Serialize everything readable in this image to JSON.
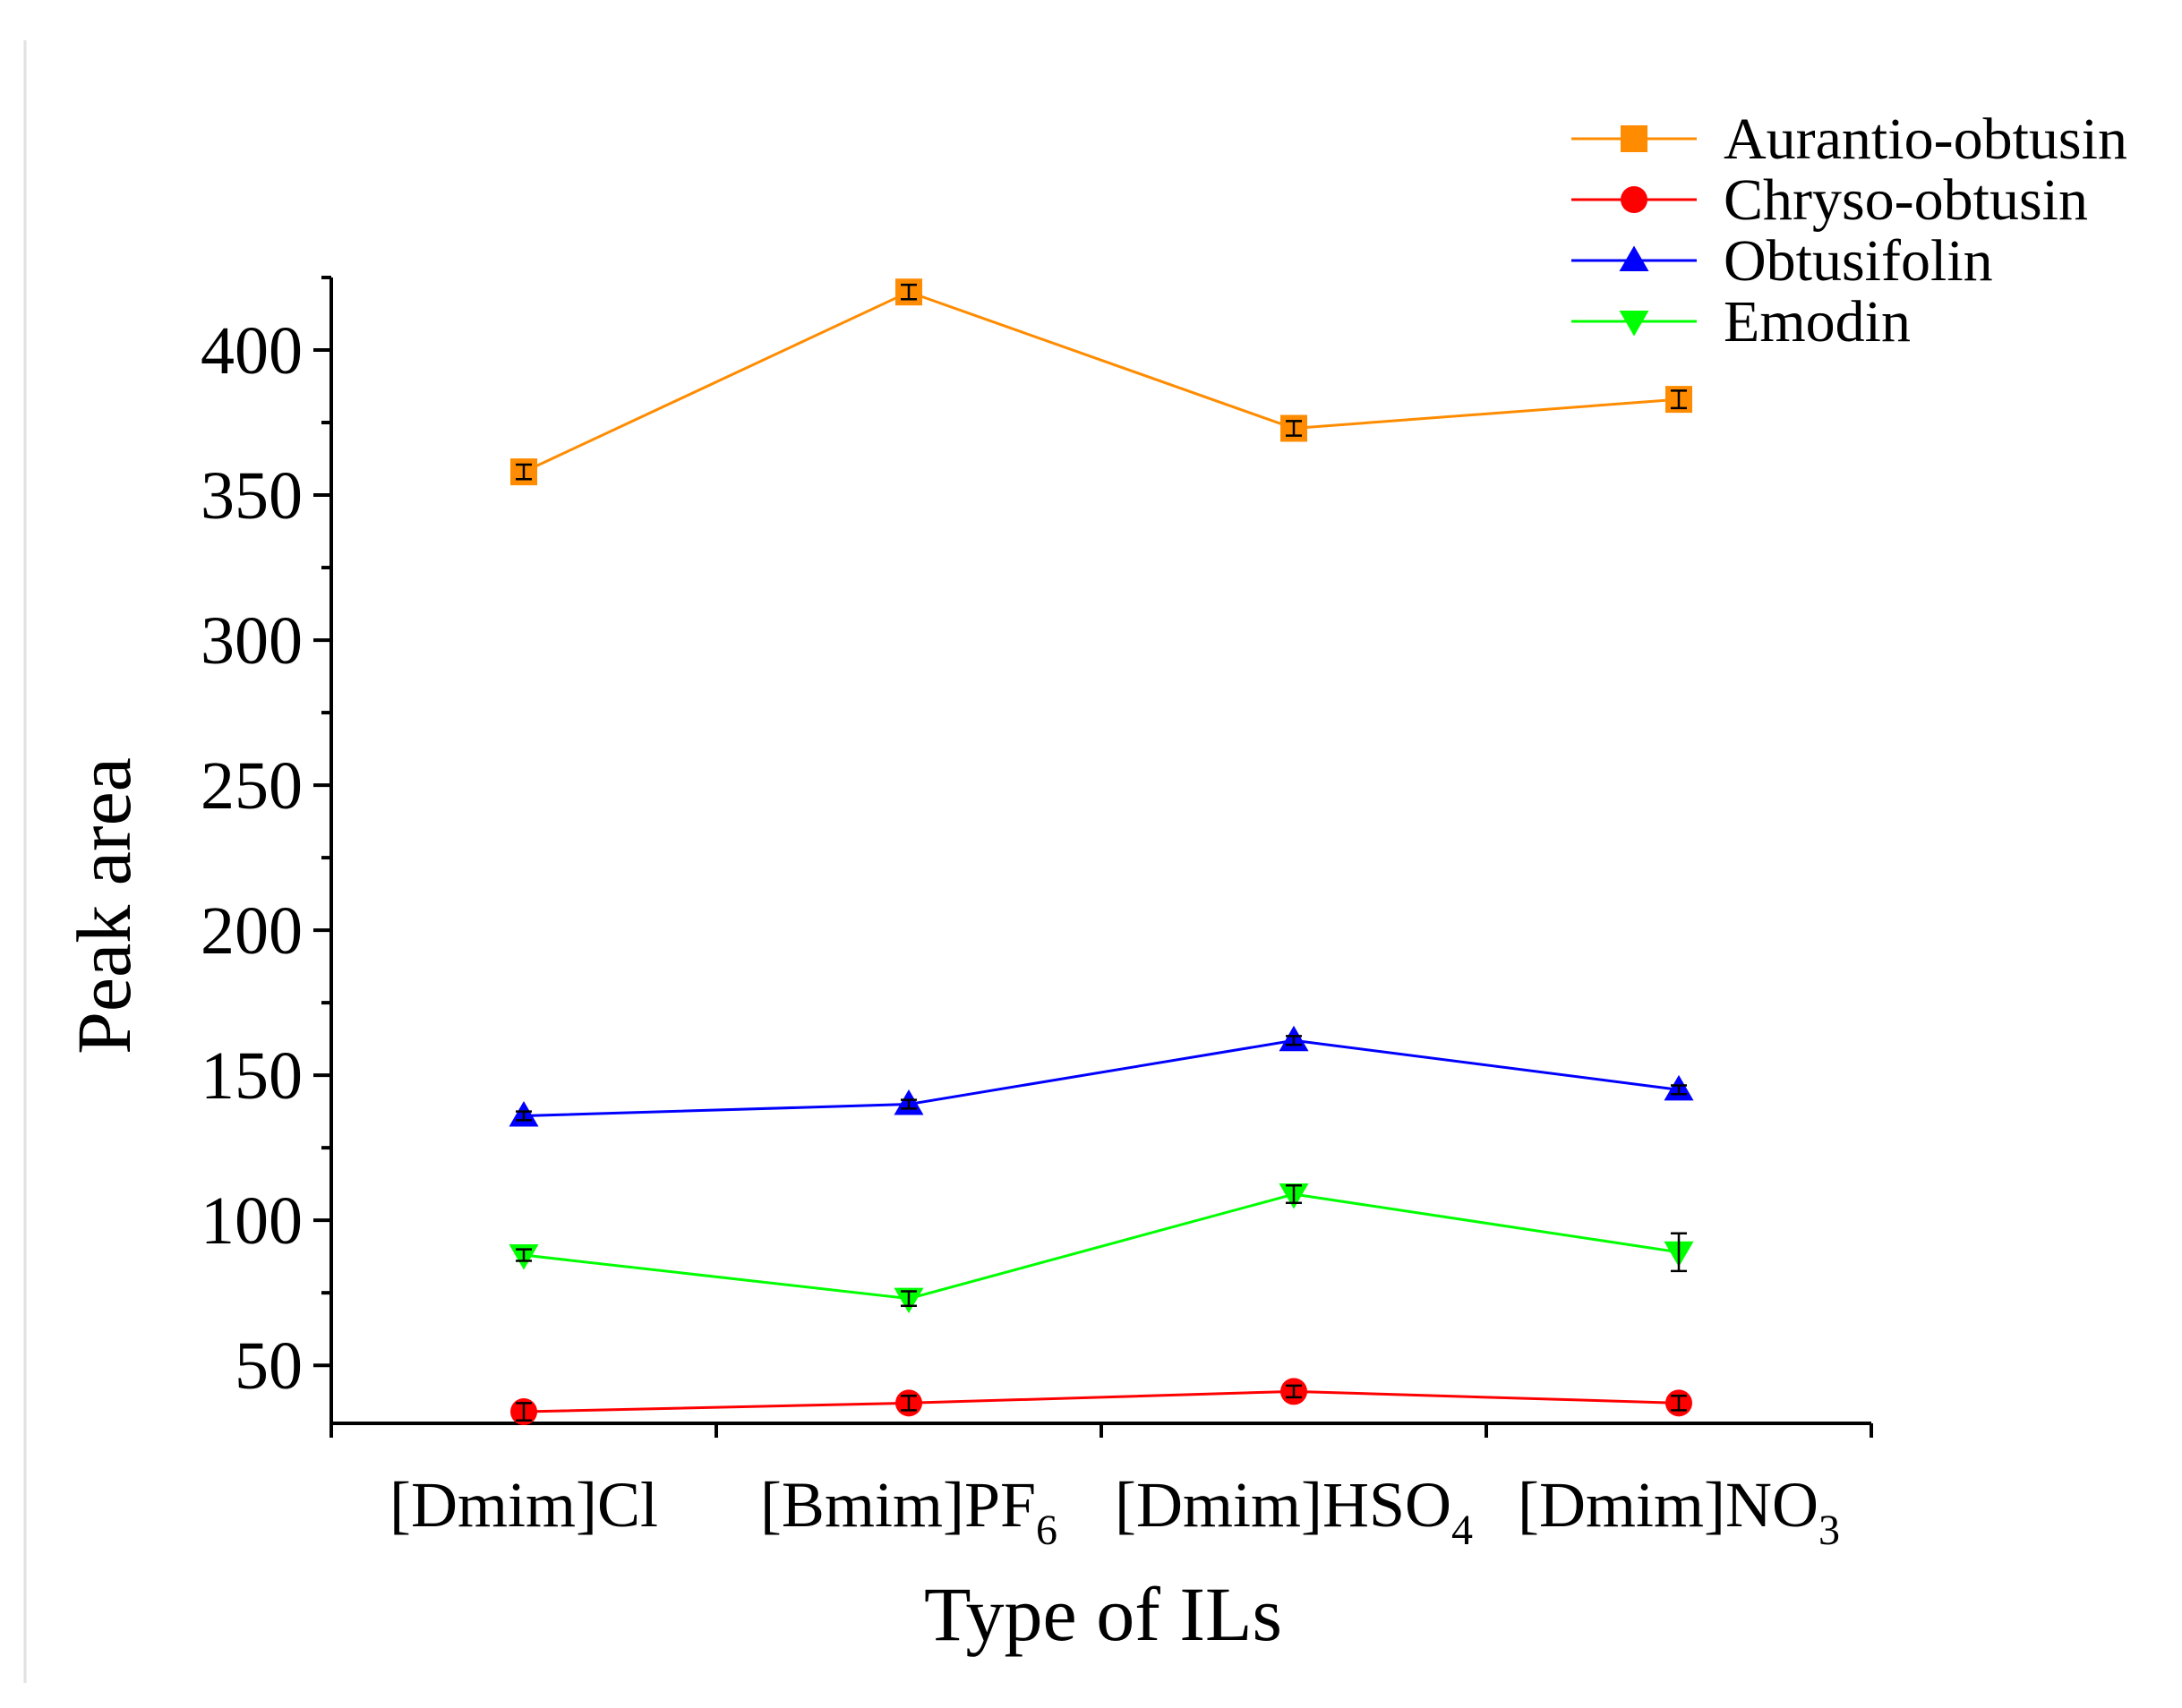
{
  "chart_data": {
    "type": "line",
    "title": "",
    "xlabel": "Type of ILs",
    "ylabel": "Peak area",
    "ylim": [
      30,
      425
    ],
    "yticks": [
      50,
      100,
      150,
      200,
      250,
      300,
      350,
      400
    ],
    "grid": false,
    "legend_position": "top-right",
    "categories": [
      {
        "base": "[Dmim]Cl",
        "sub": ""
      },
      {
        "base": "[Bmim]PF",
        "sub": "6"
      },
      {
        "base": "[Dmim]HSO",
        "sub": "4"
      },
      {
        "base": "[Dmim]NO",
        "sub": "3"
      }
    ],
    "series": [
      {
        "name": "Aurantio-obtusin",
        "color": "#ff8c00",
        "marker": "square",
        "values": [
          358,
          420,
          373,
          383
        ],
        "errors": [
          2.5,
          2.5,
          2.5,
          3
        ]
      },
      {
        "name": "Chryso-obtusin",
        "color": "#ff0000",
        "marker": "circle",
        "values": [
          34,
          37,
          41,
          37
        ],
        "errors": [
          3,
          2.5,
          2,
          2.5
        ]
      },
      {
        "name": "Obtusifolin",
        "color": "#0000ff",
        "marker": "triangle-up",
        "values": [
          136,
          140,
          162,
          145
        ],
        "errors": [
          1.5,
          1.5,
          1.5,
          1.5
        ]
      },
      {
        "name": "Emodin",
        "color": "#00ff00",
        "marker": "triangle-down",
        "values": [
          88,
          73,
          109,
          89
        ],
        "errors": [
          2,
          2.5,
          3,
          6.5
        ]
      }
    ]
  }
}
